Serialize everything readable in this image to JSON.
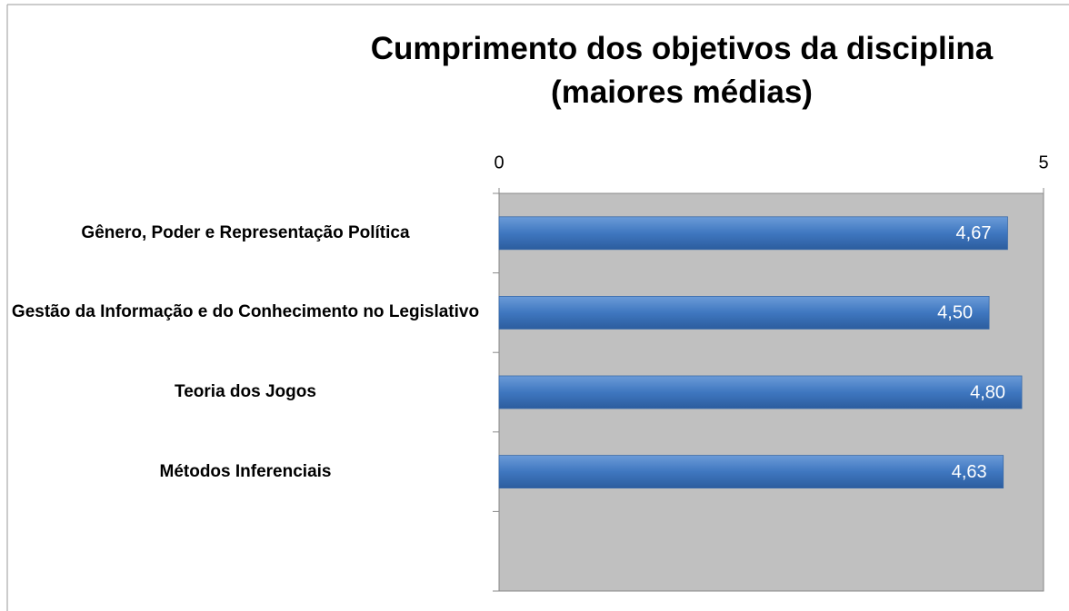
{
  "chart_data": {
    "type": "hbar",
    "title": "Cumprimento dos objetivos da disciplina (maiores médias)",
    "categories": [
      "Gênero, Poder e Representação Política",
      "Gestão da Informação e do Conhecimento no Legislativo",
      "Teoria dos Jogos",
      "Métodos Inferenciais",
      null
    ],
    "values": [
      4.67,
      4.5,
      4.8,
      4.63,
      null
    ],
    "value_labels": [
      "4,67",
      "4,50",
      "4,80",
      "4,63",
      null
    ],
    "color": "#4a7ebb",
    "xlim": [
      0,
      5
    ],
    "xticks": [
      0,
      5
    ],
    "plot_background": "#c0c0c0"
  }
}
